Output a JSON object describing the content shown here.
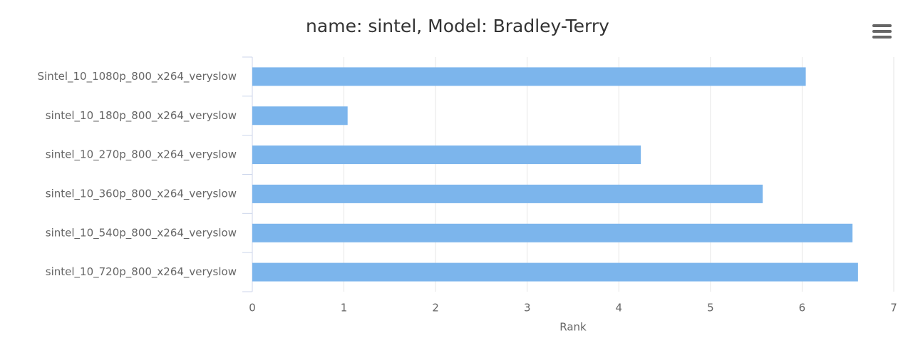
{
  "chart_data": {
    "type": "bar",
    "orientation": "horizontal",
    "title": "name: sintel, Model: Bradley-Terry",
    "categories": [
      "Sintel_10_1080p_800_x264_veryslow",
      "sintel_10_180p_800_x264_veryslow",
      "sintel_10_270p_800_x264_veryslow",
      "sintel_10_360p_800_x264_veryslow",
      "sintel_10_540p_800_x264_veryslow",
      "sintel_10_720p_800_x264_veryslow"
    ],
    "values": [
      6.04,
      1.04,
      4.24,
      5.57,
      6.55,
      6.61
    ],
    "color": "#7cb5ec",
    "x_label": "Rank",
    "xlim": [
      0,
      7
    ],
    "xticks": [
      0,
      1,
      2,
      3,
      4,
      5,
      6,
      7
    ],
    "grid": true
  }
}
